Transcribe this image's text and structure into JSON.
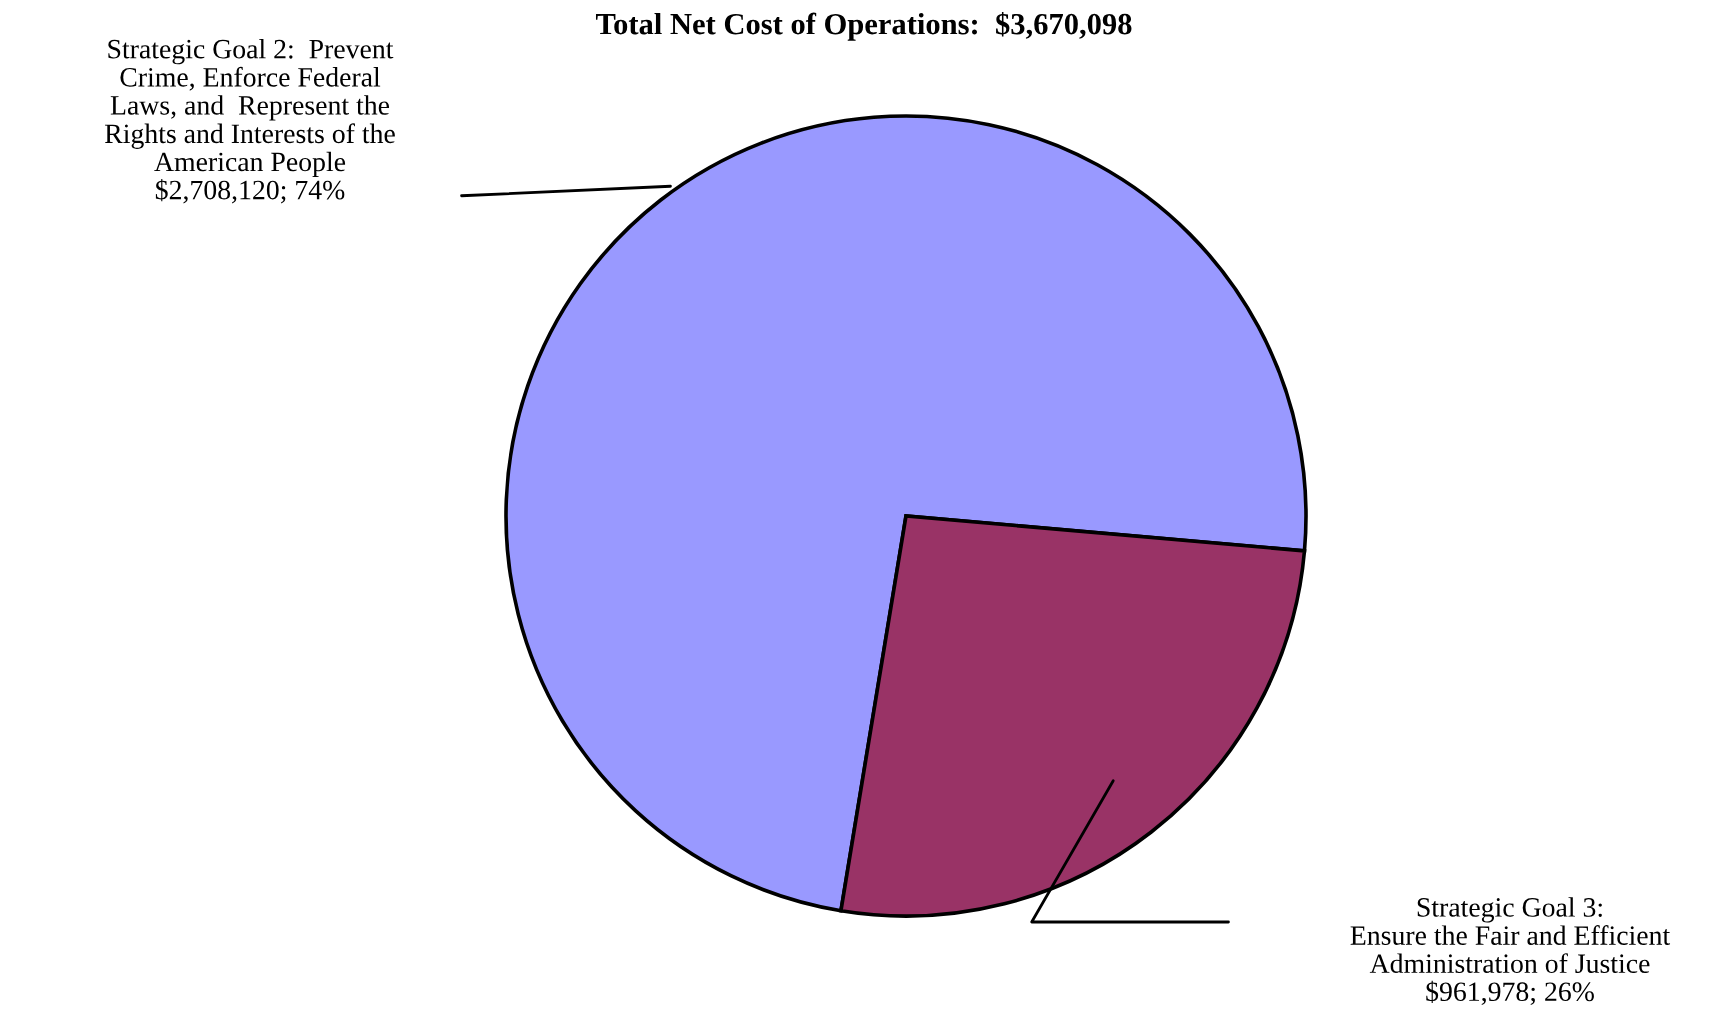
{
  "chart_data": {
    "type": "pie",
    "title": "Total Net Cost of Operations:  $3,670,098",
    "categories": [
      "Strategic Goal 2:  Prevent\nCrime, Enforce Federal\nLaws, and  Represent the\nRights and Interests of the\nAmerican People",
      "Strategic Goal 3:\nEnsure the Fair and Efficient\nAdministration of Justice"
    ],
    "values": [
      2708120,
      961978
    ],
    "value_labels": [
      "$2,708,120; 74%",
      "$961,978; 26%"
    ],
    "colors": [
      "#9999ff",
      "#993366"
    ]
  }
}
